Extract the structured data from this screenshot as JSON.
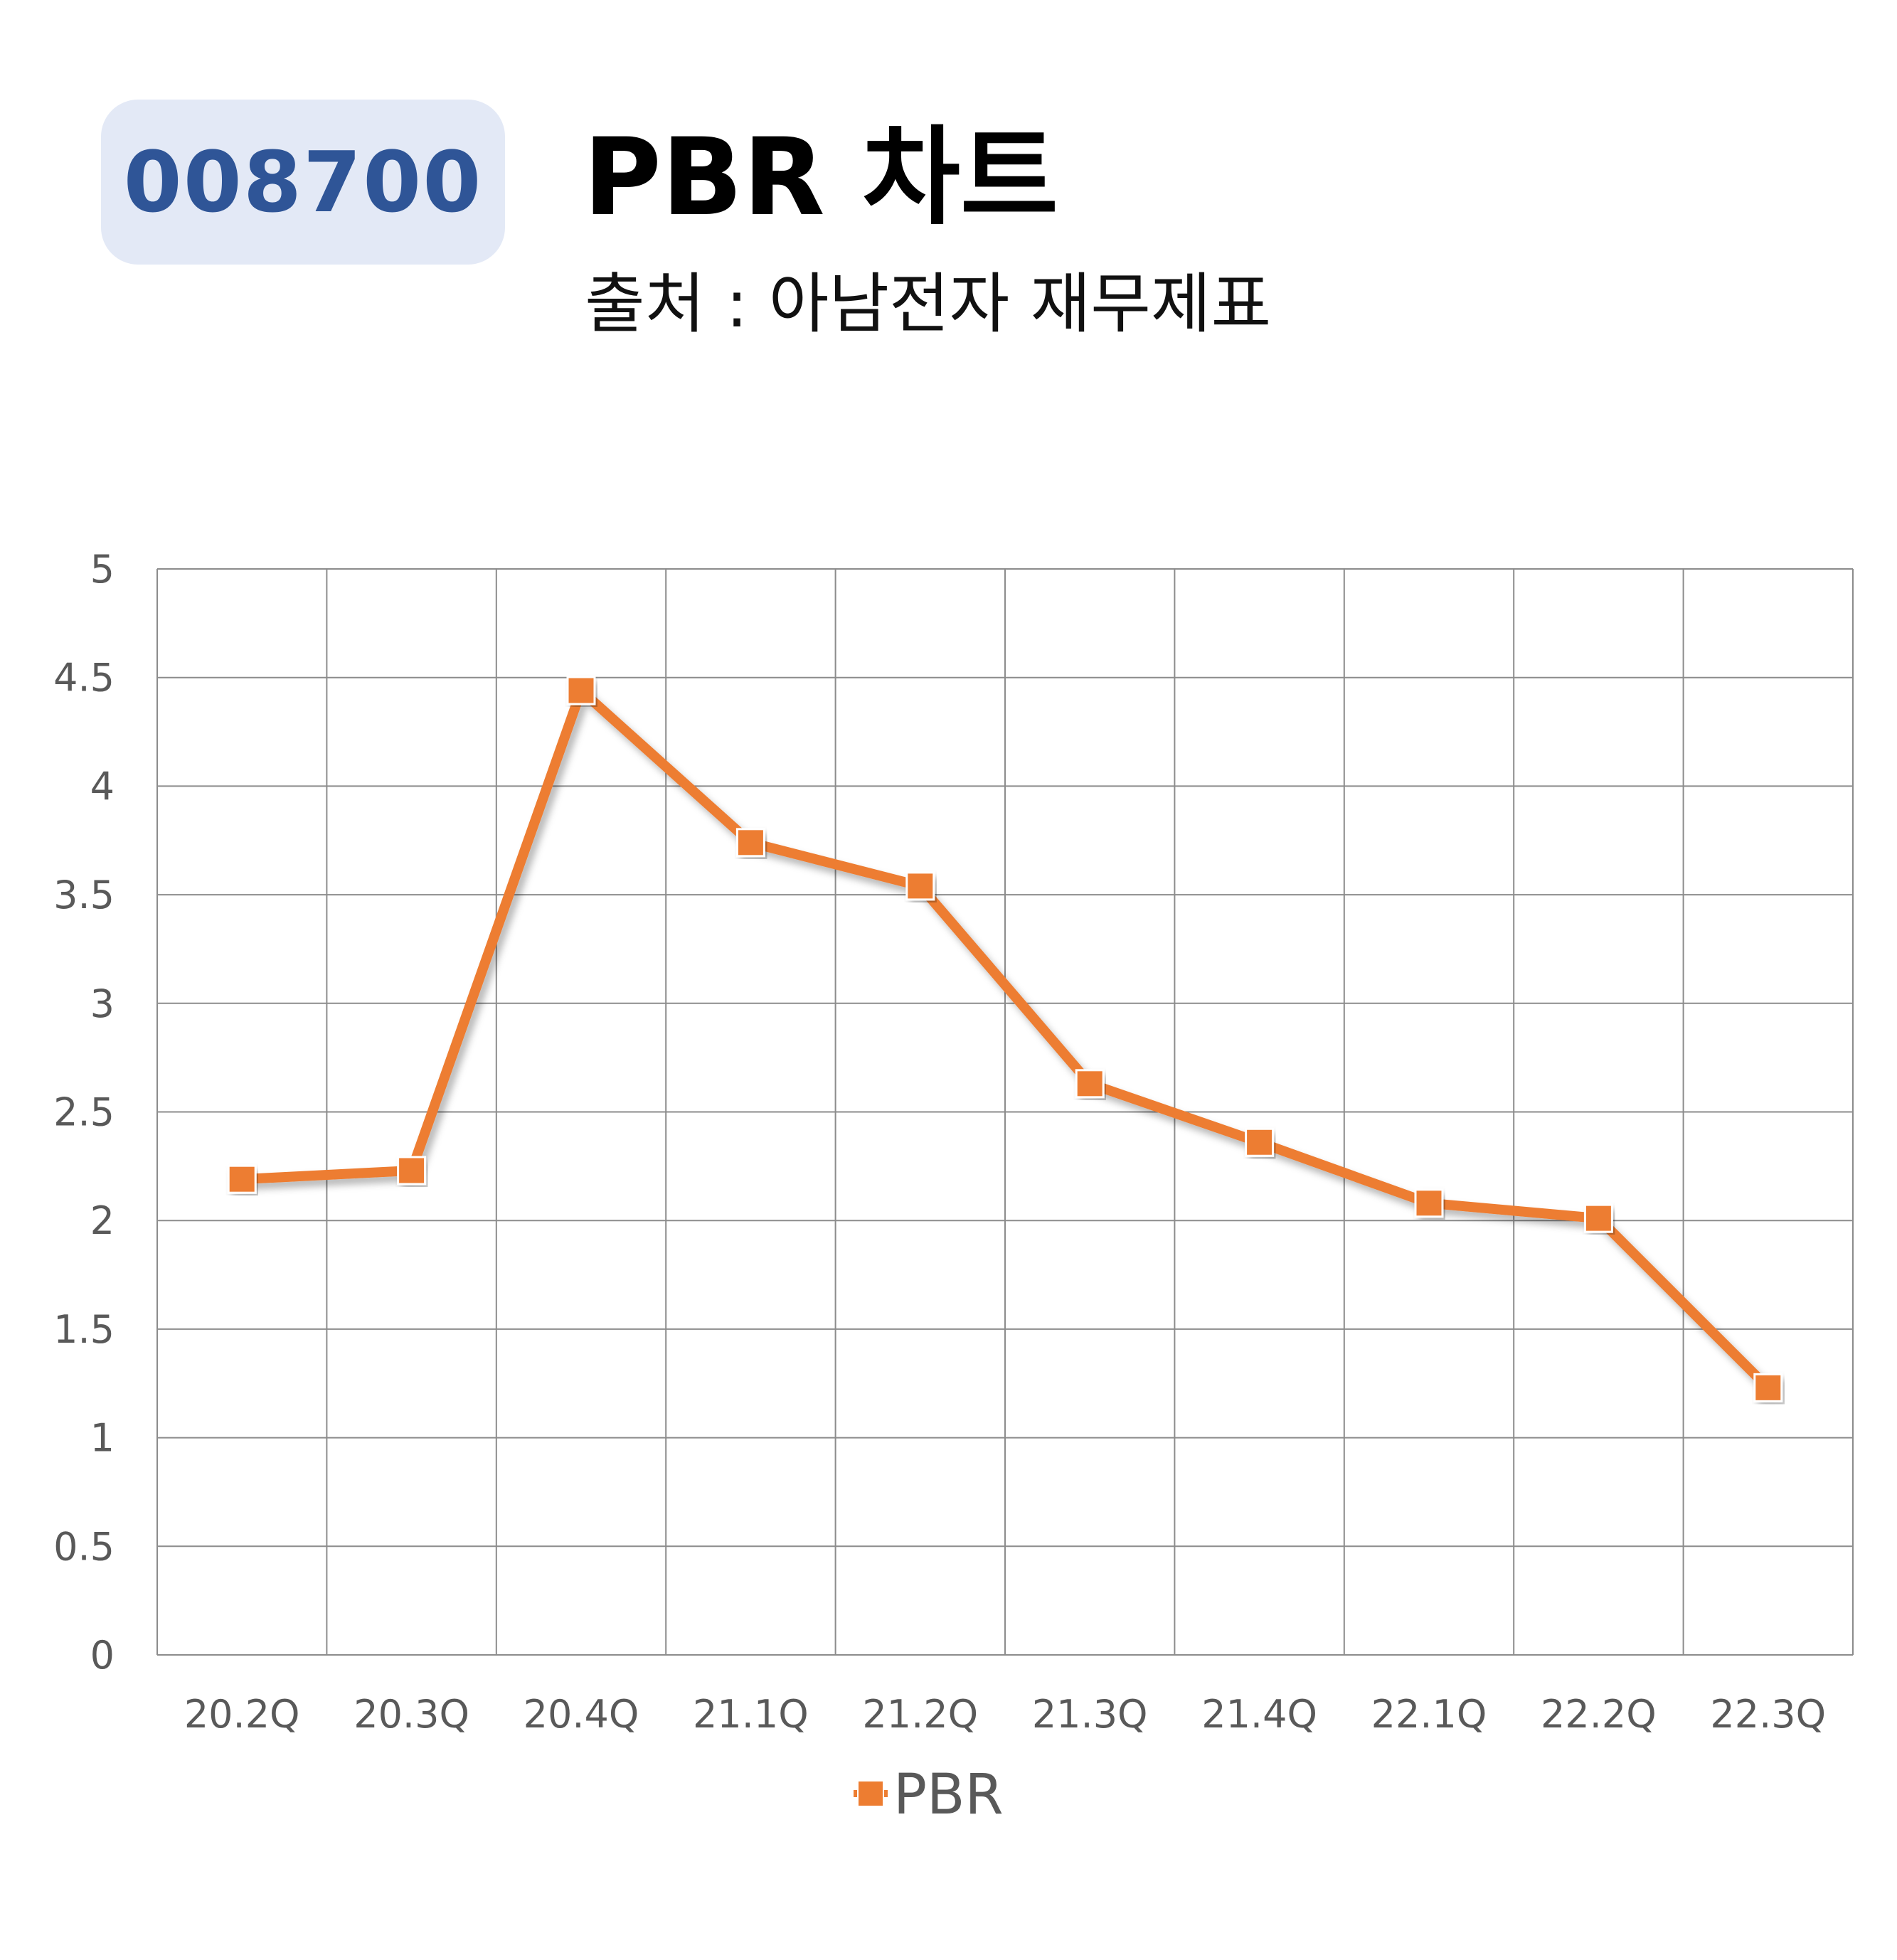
{
  "ticker": "008700",
  "title": "PBR 차트",
  "subtitle": "출처 : 아남전자 재무제표",
  "colors": {
    "badge_bg": "#e3e9f6",
    "badge_text": "#2f5597",
    "series": "#ed7d31",
    "grid": "#8c8c8c",
    "tick_text": "#595959"
  },
  "chart_data": {
    "type": "line",
    "categories": [
      "20.2Q",
      "20.3Q",
      "20.4Q",
      "21.1Q",
      "21.2Q",
      "21.3Q",
      "21.4Q",
      "22.1Q",
      "22.2Q",
      "22.3Q"
    ],
    "series": [
      {
        "name": "PBR",
        "values": [
          2.19,
          2.23,
          4.44,
          3.74,
          3.54,
          2.63,
          2.36,
          2.08,
          2.01,
          1.23
        ],
        "marker": "square"
      }
    ],
    "ylim": [
      0,
      5
    ],
    "yticks": [
      "0",
      "0.5",
      "1",
      "1.5",
      "2",
      "2.5",
      "3",
      "3.5",
      "4",
      "4.5",
      "5"
    ],
    "grid": true,
    "legend_position": "bottom"
  }
}
